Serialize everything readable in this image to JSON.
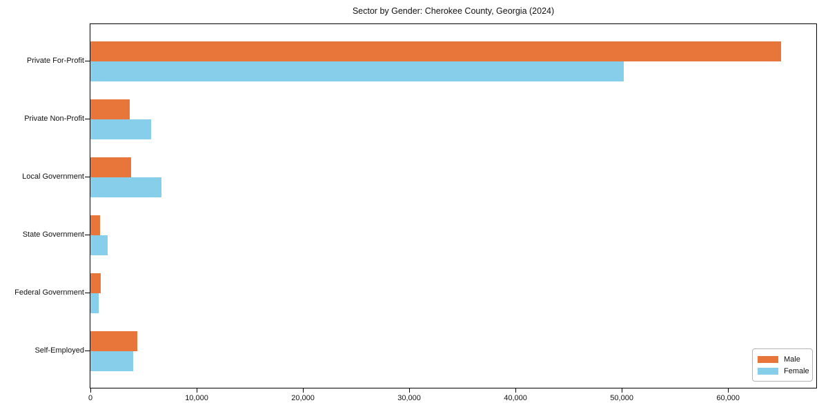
{
  "chart_data": {
    "type": "bar",
    "orientation": "horizontal",
    "title": "Sector by Gender: Cherokee County, Georgia (2024)",
    "categories": [
      "Private For-Profit",
      "Private Non-Profit",
      "Local Government",
      "State Government",
      "Federal Government",
      "Self-Employed"
    ],
    "series": [
      {
        "name": "Male",
        "color": "#e8763b",
        "values": [
          65000,
          3700,
          3800,
          900,
          1000,
          4400
        ]
      },
      {
        "name": "Female",
        "color": "#87ceeb",
        "values": [
          50200,
          5700,
          6700,
          1600,
          750,
          4000
        ]
      }
    ],
    "xlim": [
      0,
      68300
    ],
    "xticks": [
      0,
      10000,
      20000,
      30000,
      40000,
      50000,
      60000
    ],
    "xtick_labels": [
      "0",
      "10,000",
      "20,000",
      "30,000",
      "40,000",
      "50,000",
      "60,000"
    ],
    "xlabel": "",
    "ylabel": "",
    "legend_position": "lower right",
    "grid": false,
    "colors": {
      "male": "#e8763b",
      "female": "#87ceeb",
      "spine": "#000000",
      "text": "#111111"
    }
  }
}
